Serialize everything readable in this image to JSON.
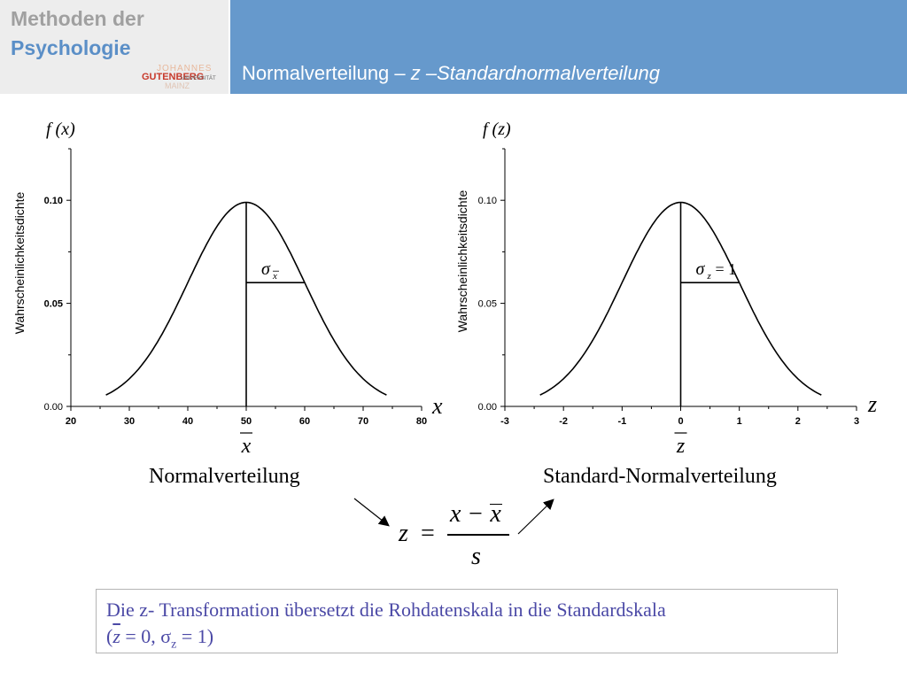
{
  "header": {
    "logo_line1": "Methoden der",
    "logo_line2": "Psychologie",
    "uni_johannes": "JOHANNES",
    "uni_gutenberg": "GUTENBERG",
    "uni_universitaet": "UNIVERSITÄT",
    "uni_mainz": "MAINZ",
    "title_plain": "Normalverteilung – ",
    "title_italic": "z –Standardnormalverteilung"
  },
  "colors": {
    "header_bar": "#6699cc",
    "logo_bg": "#ededed",
    "note_text": "#4b49a6",
    "note_border": "#b4b4b4"
  },
  "chart_data": [
    {
      "type": "line",
      "title": "",
      "ylabel_top": "f (x)",
      "ylabel": "Wahrscheinlichkeitsdichte",
      "xlabel": "x",
      "xlim": [
        20,
        80
      ],
      "ylim": [
        0,
        0.125
      ],
      "xticks": [
        20,
        30,
        40,
        50,
        60,
        70,
        80
      ],
      "xtick_labels": [
        "20",
        "30",
        "40",
        "50",
        "60",
        "70",
        "80"
      ],
      "yticks": [
        0.0,
        0.05,
        0.1
      ],
      "ytick_labels": [
        "0.00",
        "0.05",
        "0.10"
      ],
      "mean": 50,
      "sd": 10,
      "curve_range": [
        26,
        74
      ],
      "peak": 0.099,
      "mean_label": "x",
      "sigma_label": "σ",
      "sigma_sub": "x",
      "sigma_suffix": "",
      "caption": "Normalverteilung",
      "grid": false
    },
    {
      "type": "line",
      "title": "",
      "ylabel_top": "f (z)",
      "ylabel": "Wahrscheinlichkeitsdichte",
      "xlabel": "z",
      "xlim": [
        -3,
        3
      ],
      "ylim": [
        0,
        0.125
      ],
      "xticks": [
        -3,
        -2,
        -1,
        0,
        1,
        2,
        3
      ],
      "xtick_labels": [
        "-3",
        "-2",
        "-1",
        "0",
        "1",
        "2",
        "3"
      ],
      "yticks": [
        0.0,
        0.05,
        0.1
      ],
      "ytick_labels": [
        "0.00",
        "0.05",
        "0.10"
      ],
      "mean": 0,
      "sd": 1,
      "curve_range": [
        -2.4,
        2.4
      ],
      "peak": 0.099,
      "mean_label": "z",
      "sigma_label": "σ",
      "sigma_sub": "z",
      "sigma_suffix": " = 1",
      "caption": "Standard-Normalverteilung",
      "grid": false
    }
  ],
  "formula": {
    "lhs": "z",
    "eq": "=",
    "numerator": "x − x",
    "denominator": "s"
  },
  "note": {
    "line1": "Die z- Transformation übersetzt die Rohdatenskala in die Standardskala",
    "open": "(",
    "zbar": "z",
    "eq0": " = 0, σ",
    "sub_z": "z",
    "eq1": " = 1)"
  }
}
